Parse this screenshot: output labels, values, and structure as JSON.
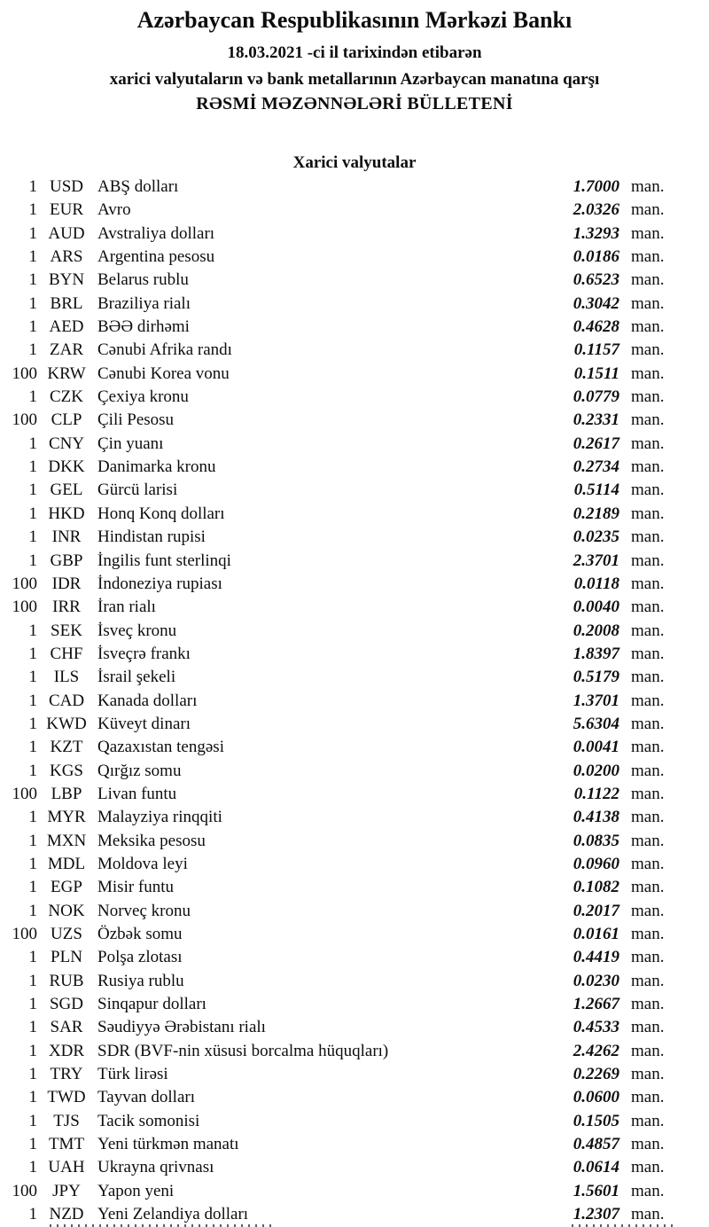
{
  "header": {
    "bank_name": "Azərbaycan Respublikasının Mərkəzi Bankı",
    "date_line": "18.03.2021 -ci il tarixindən etibarən",
    "subject_line": "xarici valyutaların və bank metallarının Azərbaycan manatına qarşı",
    "bulletin_line": "RƏSMİ MƏZƏNNƏLƏRİ BÜLLETENİ"
  },
  "section": {
    "title": "Xarici valyutalar"
  },
  "unit_label": "man.",
  "rates": [
    {
      "qty": "1",
      "code": "USD",
      "name": "ABŞ dolları",
      "rate": "1.7000"
    },
    {
      "qty": "1",
      "code": "EUR",
      "name": "Avro",
      "rate": "2.0326"
    },
    {
      "qty": "1",
      "code": "AUD",
      "name": "Avstraliya dolları",
      "rate": "1.3293"
    },
    {
      "qty": "1",
      "code": "ARS",
      "name": "Argentina pesosu",
      "rate": "0.0186"
    },
    {
      "qty": "1",
      "code": "BYN",
      "name": "Belarus rublu",
      "rate": "0.6523"
    },
    {
      "qty": "1",
      "code": "BRL",
      "name": "Braziliya rialı",
      "rate": "0.3042"
    },
    {
      "qty": "1",
      "code": "AED",
      "name": "BƏƏ dirhəmi",
      "rate": "0.4628"
    },
    {
      "qty": "1",
      "code": "ZAR",
      "name": "Cənubi Afrika randı",
      "rate": "0.1157"
    },
    {
      "qty": "100",
      "code": "KRW",
      "name": "Cənubi Korea vonu",
      "rate": "0.1511"
    },
    {
      "qty": "1",
      "code": "CZK",
      "name": "Çexiya kronu",
      "rate": "0.0779"
    },
    {
      "qty": "100",
      "code": "CLP",
      "name": "Çili Pesosu",
      "rate": "0.2331"
    },
    {
      "qty": "1",
      "code": "CNY",
      "name": "Çin yuanı",
      "rate": "0.2617"
    },
    {
      "qty": "1",
      "code": "DKK",
      "name": "Danimarka kronu",
      "rate": "0.2734"
    },
    {
      "qty": "1",
      "code": "GEL",
      "name": "Gürcü larisi",
      "rate": "0.5114"
    },
    {
      "qty": "1",
      "code": "HKD",
      "name": "Honq Konq dolları",
      "rate": "0.2189"
    },
    {
      "qty": "1",
      "code": "INR",
      "name": "Hindistan rupisi",
      "rate": "0.0235"
    },
    {
      "qty": "1",
      "code": "GBP",
      "name": "İngilis funt sterlinqi",
      "rate": "2.3701"
    },
    {
      "qty": "100",
      "code": "IDR",
      "name": "İndoneziya rupiası",
      "rate": "0.0118"
    },
    {
      "qty": "100",
      "code": "IRR",
      "name": "İran rialı",
      "rate": "0.0040"
    },
    {
      "qty": "1",
      "code": "SEK",
      "name": "İsveç kronu",
      "rate": "0.2008"
    },
    {
      "qty": "1",
      "code": "CHF",
      "name": "İsveçrə frankı",
      "rate": "1.8397"
    },
    {
      "qty": "1",
      "code": "ILS",
      "name": "İsrail şekeli",
      "rate": "0.5179"
    },
    {
      "qty": "1",
      "code": "CAD",
      "name": "Kanada dolları",
      "rate": "1.3701"
    },
    {
      "qty": "1",
      "code": "KWD",
      "name": "Küveyt dinarı",
      "rate": "5.6304"
    },
    {
      "qty": "1",
      "code": "KZT",
      "name": "Qazaxıstan tengəsi",
      "rate": "0.0041"
    },
    {
      "qty": "1",
      "code": "KGS",
      "name": "Qırğız somu",
      "rate": "0.0200"
    },
    {
      "qty": "100",
      "code": "LBP",
      "name": "Livan funtu",
      "rate": "0.1122"
    },
    {
      "qty": "1",
      "code": "MYR",
      "name": "Malayziya rinqqiti",
      "rate": "0.4138"
    },
    {
      "qty": "1",
      "code": "MXN",
      "name": "Meksika pesosu",
      "rate": "0.0835"
    },
    {
      "qty": "1",
      "code": "MDL",
      "name": "Moldova leyi",
      "rate": "0.0960"
    },
    {
      "qty": "1",
      "code": "EGP",
      "name": "Misir funtu",
      "rate": "0.1082"
    },
    {
      "qty": "1",
      "code": "NOK",
      "name": "Norveç kronu",
      "rate": "0.2017"
    },
    {
      "qty": "100",
      "code": "UZS",
      "name": "Özbək somu",
      "rate": "0.0161"
    },
    {
      "qty": "1",
      "code": "PLN",
      "name": "Polşa zlotası",
      "rate": "0.4419"
    },
    {
      "qty": "1",
      "code": "RUB",
      "name": "Rusiya rublu",
      "rate": "0.0230"
    },
    {
      "qty": "1",
      "code": "SGD",
      "name": "Sinqapur dolları",
      "rate": "1.2667"
    },
    {
      "qty": "1",
      "code": "SAR",
      "name": "Səudiyyə Ərəbistanı rialı",
      "rate": "0.4533"
    },
    {
      "qty": "1",
      "code": "XDR",
      "name": "SDR (BVF-nin xüsusi borcalma hüquqları)",
      "rate": "2.4262"
    },
    {
      "qty": "1",
      "code": "TRY",
      "name": "Türk lirəsi",
      "rate": "0.2269"
    },
    {
      "qty": "1",
      "code": "TWD",
      "name": "Tayvan dolları",
      "rate": "0.0600"
    },
    {
      "qty": "1",
      "code": "TJS",
      "name": "Tacik somonisi",
      "rate": "0.1505"
    },
    {
      "qty": "1",
      "code": "TMT",
      "name": "Yeni türkmən manatı",
      "rate": "0.4857"
    },
    {
      "qty": "1",
      "code": "UAH",
      "name": "Ukrayna qrivnası",
      "rate": "0.0614"
    },
    {
      "qty": "100",
      "code": "JPY",
      "name": "Yapon yeni",
      "rate": "1.5601"
    },
    {
      "qty": "1",
      "code": "NZD",
      "name": "Yeni Zelandiya dolları",
      "rate": "1.2307"
    }
  ]
}
